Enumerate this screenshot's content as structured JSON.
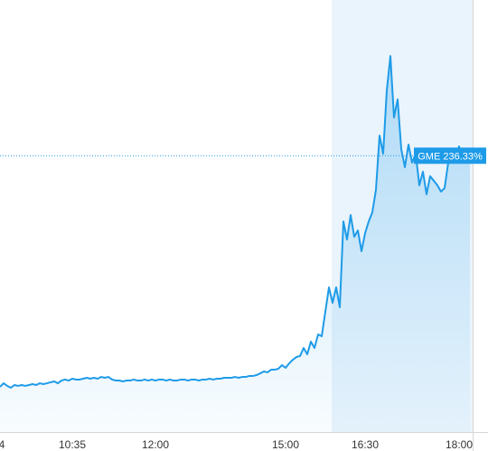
{
  "chart_data": {
    "type": "line",
    "categories": [
      "4",
      null,
      null,
      null,
      null,
      null,
      null,
      null,
      null,
      null,
      null,
      null,
      null,
      null,
      null,
      null,
      null,
      null,
      null,
      null,
      "10:35",
      null,
      null,
      null,
      null,
      null,
      null,
      null,
      null,
      null,
      null,
      null,
      null,
      null,
      null,
      null,
      null,
      null,
      null,
      null,
      null,
      null,
      null,
      "12:00",
      null,
      null,
      null,
      null,
      null,
      null,
      null,
      null,
      null,
      null,
      null,
      null,
      null,
      null,
      null,
      null,
      null,
      null,
      null,
      null,
      null,
      null,
      null,
      null,
      null,
      null,
      null,
      null,
      null,
      null,
      null,
      null,
      null,
      null,
      null,
      "15:00",
      null,
      null,
      null,
      null,
      null,
      null,
      null,
      null,
      null,
      null,
      null,
      null,
      null,
      null,
      null,
      null,
      null,
      null,
      null,
      null,
      null,
      "16:30",
      null,
      null,
      null,
      null,
      null,
      null,
      null,
      null,
      null,
      null,
      null,
      null,
      null,
      null,
      null,
      null,
      null,
      null,
      null,
      null,
      null,
      null,
      null,
      null,
      null,
      "18:00",
      null,
      null,
      null
    ],
    "series": [
      {
        "name": "GME",
        "color": "#1e9be8",
        "values": [
          -0.7,
          3.0,
          0.3,
          -1.6,
          1.2,
          0.3,
          1.2,
          0.3,
          1.2,
          2.1,
          1.2,
          3.0,
          2.1,
          3.0,
          4.0,
          4.9,
          3.0,
          5.8,
          6.8,
          5.8,
          7.7,
          6.8,
          6.8,
          7.7,
          8.6,
          7.7,
          8.6,
          7.7,
          9.5,
          8.6,
          9.5,
          6.8,
          5.8,
          5.8,
          4.9,
          5.8,
          5.8,
          6.8,
          5.8,
          5.8,
          6.8,
          5.8,
          6.8,
          5.8,
          6.8,
          6.8,
          5.8,
          6.8,
          5.8,
          5.8,
          6.8,
          6.8,
          5.8,
          6.8,
          6.8,
          5.8,
          6.8,
          6.8,
          7.7,
          6.8,
          7.7,
          7.7,
          8.6,
          8.6,
          8.6,
          9.5,
          8.6,
          9.5,
          9.5,
          10.5,
          10.5,
          11.4,
          13.2,
          15.1,
          14.2,
          16.9,
          16.9,
          17.9,
          21.6,
          18.8,
          23.4,
          27.1,
          29.9,
          30.9,
          39.2,
          32.7,
          45.7,
          39.2,
          53.1,
          51.2,
          76.3,
          101.3,
          85.5,
          101.3,
          80.9,
          168.9,
          150.4,
          175.4,
          153.2,
          159.7,
          138.4,
          156.9,
          168.9,
          178.2,
          201.4,
          257.0,
          238.5,
          303.3,
          338.5,
          275.5,
          294.1,
          243.1,
          224.6,
          247.7,
          229.2,
          238.5,
          206.0,
          219.9,
          196.8,
          215.3,
          210.7,
          206.0,
          199.5,
          203.2,
          229.2,
          243.1,
          233.8,
          245.9,
          231.0,
          240.3,
          236.33
        ],
        "value_labels": [
          null,
          null,
          null,
          null,
          null,
          null,
          null,
          null,
          null,
          null,
          null,
          null,
          null,
          null,
          null,
          null,
          null,
          null,
          null,
          null,
          null,
          null,
          null,
          null,
          null,
          null,
          null,
          null,
          null,
          null,
          null,
          null,
          null,
          null,
          null,
          null,
          null,
          null,
          null,
          null,
          null,
          null,
          null,
          null,
          null,
          null,
          null,
          null,
          null,
          null,
          null,
          null,
          null,
          null,
          null,
          null,
          null,
          null,
          null,
          null,
          null,
          null,
          null,
          null,
          null,
          null,
          null,
          null,
          null,
          null,
          null,
          null,
          null,
          null,
          null,
          null,
          null,
          null,
          null,
          null,
          null,
          null,
          null,
          null,
          null,
          null,
          null,
          null,
          null,
          null,
          null,
          null,
          null,
          null,
          null,
          null,
          null,
          null,
          null,
          null,
          null,
          null,
          null,
          null,
          null,
          null,
          null,
          null,
          null,
          null,
          null,
          null,
          null,
          null,
          null,
          null,
          null,
          null,
          null,
          null,
          null,
          null,
          null,
          null,
          null,
          null,
          null,
          null,
          null,
          null,
          "236.33%"
        ]
      }
    ],
    "ylim": [
      -47,
      396
    ]
  }
}
